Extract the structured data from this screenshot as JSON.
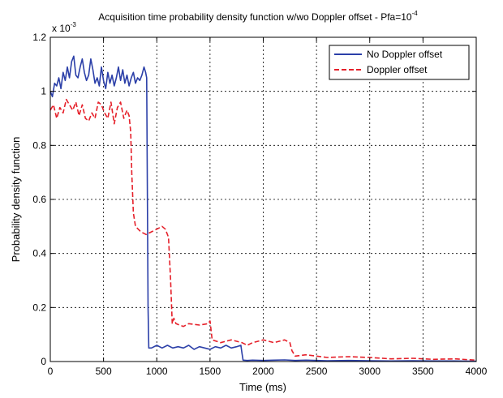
{
  "chart_data": {
    "type": "line",
    "title": "Acquisition time probability density function w/wo Doppler offset - Pfa=10",
    "title_exponent": "-4",
    "xlabel": "Time (ms)",
    "ylabel": "Probability density function",
    "y_multiplier_prefix": "x 10",
    "y_multiplier_exponent": "-3",
    "xlim": [
      0,
      4000
    ],
    "ylim": [
      0,
      1.2
    ],
    "x_ticks": [
      0,
      500,
      1000,
      1500,
      2000,
      2500,
      3000,
      3500,
      4000
    ],
    "x_tick_labels": [
      "0",
      "500",
      "1000",
      "1500",
      "2000",
      "2500",
      "3000",
      "3500",
      "4000"
    ],
    "y_ticks": [
      0,
      0.2,
      0.4,
      0.6,
      0.8,
      1,
      1.2
    ],
    "y_tick_labels": [
      "0",
      "0.2",
      "0.4",
      "0.6",
      "0.8",
      "1",
      "1.2"
    ],
    "grid": true,
    "legend_position": "top-right",
    "series": [
      {
        "name": "No Doppler offset",
        "color": "#2b3fa8",
        "style": "solid",
        "x": [
          0,
          20,
          40,
          60,
          80,
          100,
          120,
          140,
          160,
          180,
          200,
          220,
          240,
          260,
          280,
          300,
          320,
          340,
          360,
          380,
          400,
          420,
          440,
          460,
          480,
          500,
          520,
          540,
          560,
          580,
          600,
          620,
          640,
          660,
          680,
          700,
          720,
          740,
          760,
          780,
          800,
          820,
          840,
          860,
          880,
          895,
          905,
          912,
          918,
          925,
          950,
          1000,
          1050,
          1100,
          1150,
          1200,
          1250,
          1300,
          1350,
          1400,
          1450,
          1500,
          1550,
          1600,
          1650,
          1700,
          1750,
          1790,
          1800,
          1810,
          1850,
          1900,
          2000,
          2100,
          2200,
          2300,
          2400,
          2500,
          2600,
          2800,
          3000,
          3200,
          3400,
          3600,
          3800,
          4000
        ],
        "y": [
          1.0,
          0.98,
          1.03,
          1.02,
          1.05,
          1.01,
          1.07,
          1.04,
          1.09,
          1.05,
          1.11,
          1.13,
          1.06,
          1.05,
          1.09,
          1.12,
          1.07,
          1.04,
          1.06,
          1.12,
          1.08,
          1.03,
          1.05,
          1.02,
          1.09,
          1.04,
          1.01,
          1.07,
          1.03,
          1.06,
          1.02,
          1.05,
          1.09,
          1.04,
          1.08,
          1.03,
          1.06,
          1.02,
          1.05,
          1.07,
          1.03,
          1.05,
          1.04,
          1.06,
          1.09,
          1.07,
          1.05,
          0.6,
          0.2,
          0.05,
          0.05,
          0.06,
          0.05,
          0.06,
          0.05,
          0.055,
          0.05,
          0.06,
          0.045,
          0.055,
          0.05,
          0.045,
          0.055,
          0.05,
          0.06,
          0.05,
          0.055,
          0.06,
          0.03,
          0.005,
          0.004,
          0.005,
          0.004,
          0.005,
          0.006,
          0.004,
          0.005,
          0.004,
          0.003,
          0.004,
          0.003,
          0.002,
          0.003,
          0.002,
          0.002,
          0.001
        ]
      },
      {
        "name": "Doppler offset",
        "color": "#e5202a",
        "style": "dashed",
        "x": [
          0,
          30,
          60,
          90,
          120,
          150,
          180,
          210,
          240,
          270,
          300,
          330,
          360,
          390,
          420,
          450,
          480,
          510,
          540,
          570,
          600,
          630,
          660,
          690,
          720,
          740,
          755,
          765,
          780,
          800,
          850,
          900,
          950,
          1000,
          1050,
          1080,
          1110,
          1130,
          1145,
          1160,
          1180,
          1250,
          1300,
          1400,
          1480,
          1500,
          1520,
          1600,
          1700,
          1800,
          1850,
          1900,
          2000,
          2100,
          2200,
          2250,
          2270,
          2300,
          2400,
          2500,
          2600,
          2800,
          3000,
          3200,
          3400,
          3600,
          3800,
          4000
        ],
        "y": [
          0.93,
          0.95,
          0.9,
          0.94,
          0.92,
          0.97,
          0.95,
          0.93,
          0.96,
          0.91,
          0.95,
          0.9,
          0.89,
          0.92,
          0.9,
          0.96,
          0.95,
          0.92,
          0.9,
          0.96,
          0.88,
          0.94,
          0.96,
          0.9,
          0.93,
          0.91,
          0.85,
          0.7,
          0.55,
          0.5,
          0.48,
          0.47,
          0.48,
          0.49,
          0.5,
          0.49,
          0.46,
          0.3,
          0.14,
          0.16,
          0.14,
          0.13,
          0.14,
          0.135,
          0.14,
          0.15,
          0.08,
          0.07,
          0.08,
          0.07,
          0.06,
          0.07,
          0.08,
          0.07,
          0.08,
          0.07,
          0.04,
          0.02,
          0.025,
          0.02,
          0.015,
          0.018,
          0.015,
          0.01,
          0.012,
          0.008,
          0.01,
          0.005
        ]
      }
    ]
  }
}
